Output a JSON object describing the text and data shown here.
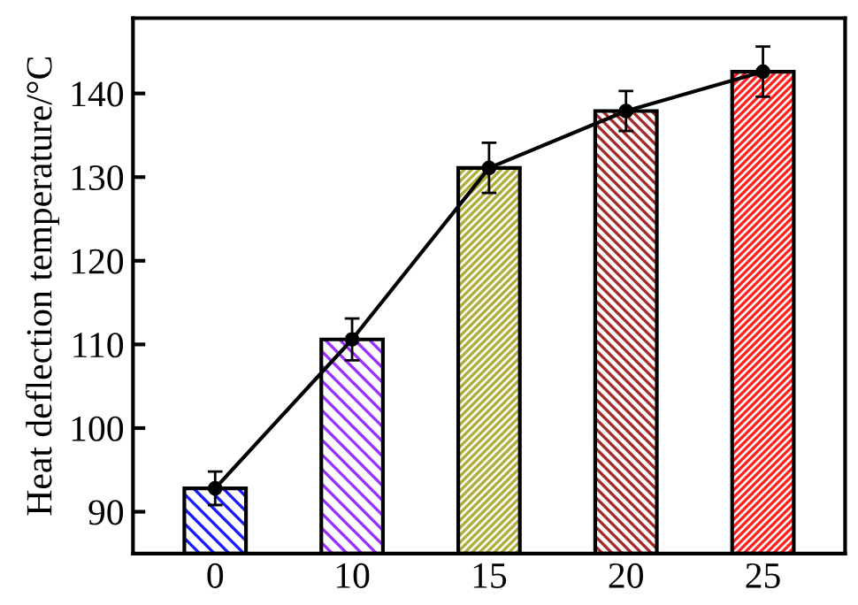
{
  "chart_data": {
    "type": "bar",
    "ylabel": "Heat deflection temperature/°C",
    "categories": [
      "0",
      "10",
      "15",
      "20",
      "25"
    ],
    "ylim": [
      85,
      149
    ],
    "yticks": [
      90,
      100,
      110,
      120,
      130,
      140
    ],
    "grid": false,
    "legend": false,
    "series": [
      {
        "colors": [
          "#1a1aff",
          "#9b30ff",
          "#b0ad3a",
          "#a52a2a",
          "#ff2020"
        ],
        "values": [
          92.8,
          110.6,
          131.1,
          137.9,
          142.6
        ]
      },
      {
        "type": "line",
        "color": "#000000",
        "marker": "circle",
        "line_style": "solid",
        "values": [
          92.8,
          110.6,
          131.1,
          137.9,
          142.6
        ],
        "errors": [
          2,
          2.5,
          3,
          2.4,
          3
        ]
      }
    ]
  }
}
